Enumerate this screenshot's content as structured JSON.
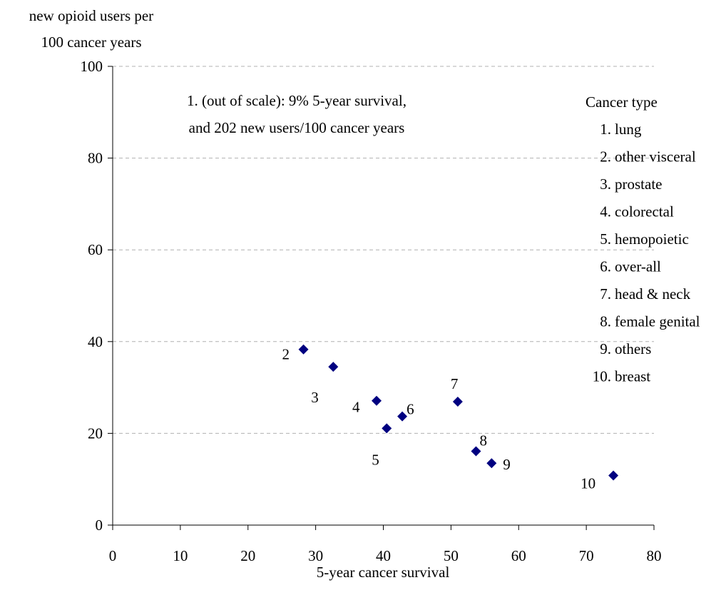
{
  "chart_data": {
    "type": "scatter",
    "xlabel": "5-year cancer survival",
    "ylabel": [
      "new opioid users per",
      "100 cancer years"
    ],
    "xlim": [
      0,
      80
    ],
    "ylim": [
      0,
      100
    ],
    "xticks": [
      0,
      10,
      20,
      30,
      40,
      50,
      60,
      70,
      80
    ],
    "yticks": [
      0,
      20,
      40,
      60,
      80,
      100
    ],
    "grid": "horizontal-dashed",
    "marker": "diamond",
    "marker_color": "#000080",
    "points": [
      {
        "label": "2",
        "x": 28.2,
        "y": 38.3
      },
      {
        "label": "3",
        "x": 32.6,
        "y": 34.5
      },
      {
        "label": "4",
        "x": 39.0,
        "y": 27.1
      },
      {
        "label": "5",
        "x": 40.5,
        "y": 21.1
      },
      {
        "label": "6",
        "x": 42.8,
        "y": 23.7
      },
      {
        "label": "7",
        "x": 51.0,
        "y": 26.9
      },
      {
        "label": "8",
        "x": 53.7,
        "y": 16.1
      },
      {
        "label": "9",
        "x": 56.0,
        "y": 13.5
      },
      {
        "label": "10",
        "x": 74.0,
        "y": 10.8
      }
    ],
    "annotation": [
      "1. (out of scale): 9%  5-year survival,",
      "and 202 new users/100 cancer years"
    ],
    "legend": {
      "title": "Cancer type",
      "position": "right",
      "items": [
        {
          "num": "1.",
          "name": "lung"
        },
        {
          "num": "2.",
          "name": "other visceral"
        },
        {
          "num": "3.",
          "name": "prostate"
        },
        {
          "num": "4.",
          "name": "colorectal"
        },
        {
          "num": "5.",
          "name": "hemopoietic"
        },
        {
          "num": "6.",
          "name": "over-all"
        },
        {
          "num": "7.",
          "name": "head & neck"
        },
        {
          "num": "8.",
          "name": "female genital"
        },
        {
          "num": "9.",
          "name": "others"
        },
        {
          "num": "10.",
          "name": "breast"
        }
      ]
    }
  }
}
